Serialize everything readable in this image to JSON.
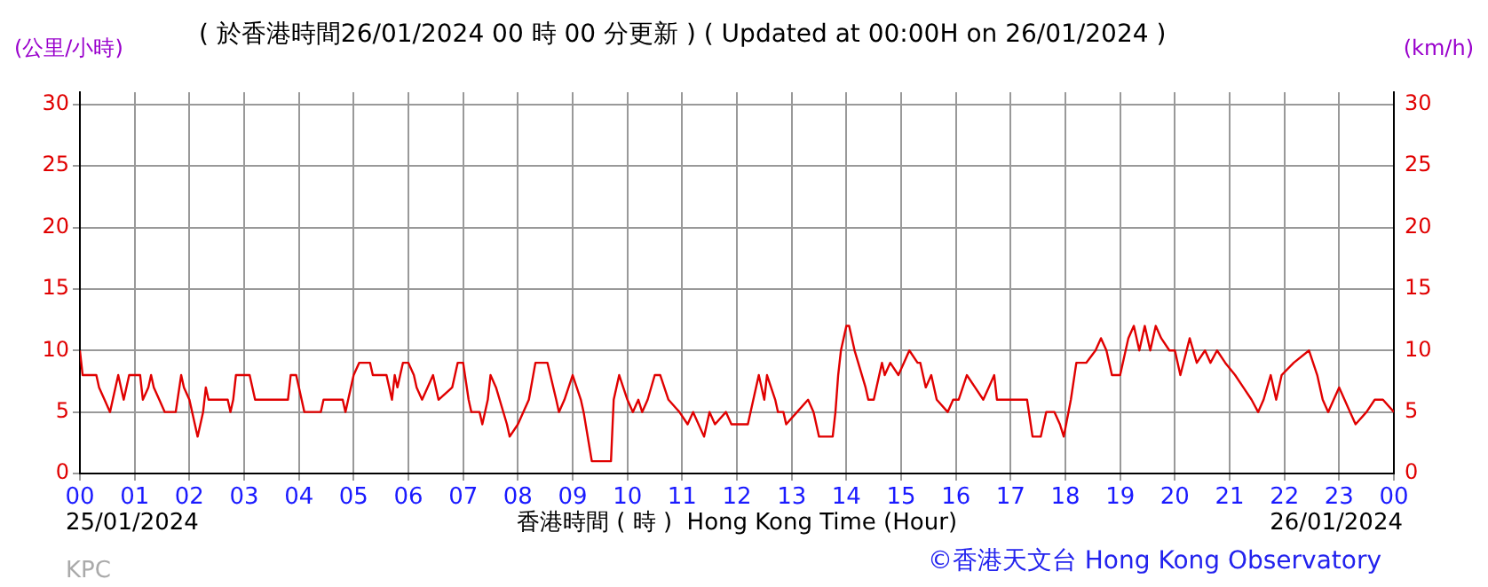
{
  "chart_data": {
    "type": "line",
    "title": "( 於香港時間26/01/2024 00 時 00 分更新 ) ( Updated at 00:00H on 26/01/2024 )",
    "xlabel": "香港時間 ( 時 )  Hong Kong Time (Hour)",
    "ylabel": "(公里/小時)",
    "y2label": "(km/h)",
    "annotations": [
      "25/01/2024",
      "26/01/2024",
      "KPC",
      "©香港天文台 Hong Kong Observatory"
    ],
    "xlim": [
      0,
      24
    ],
    "xticks": [
      {
        "value": 0,
        "label": "00"
      },
      {
        "value": 1,
        "label": "01"
      },
      {
        "value": 2,
        "label": "02"
      },
      {
        "value": 3,
        "label": "03"
      },
      {
        "value": 4,
        "label": "04"
      },
      {
        "value": 5,
        "label": "05"
      },
      {
        "value": 6,
        "label": "06"
      },
      {
        "value": 7,
        "label": "07"
      },
      {
        "value": 8,
        "label": "08"
      },
      {
        "value": 9,
        "label": "09"
      },
      {
        "value": 10,
        "label": "10"
      },
      {
        "value": 11,
        "label": "11"
      },
      {
        "value": 12,
        "label": "12"
      },
      {
        "value": 13,
        "label": "13"
      },
      {
        "value": 14,
        "label": "14"
      },
      {
        "value": 15,
        "label": "15"
      },
      {
        "value": 16,
        "label": "16"
      },
      {
        "value": 17,
        "label": "17"
      },
      {
        "value": 18,
        "label": "18"
      },
      {
        "value": 19,
        "label": "19"
      },
      {
        "value": 20,
        "label": "20"
      },
      {
        "value": 21,
        "label": "21"
      },
      {
        "value": 22,
        "label": "22"
      },
      {
        "value": 23,
        "label": "23"
      },
      {
        "value": 24,
        "label": "00"
      }
    ],
    "ylim": [
      0,
      31
    ],
    "yticks": [
      0,
      5,
      10,
      15,
      20,
      25,
      30
    ],
    "y2lim": [
      0,
      31
    ],
    "y2ticks": [
      0,
      5,
      10,
      15,
      20,
      25,
      30
    ],
    "grid": true,
    "legend": false,
    "marker": "none",
    "line_style": "solid",
    "series": [
      {
        "color": "#e00000",
        "x": [
          0,
          0.05,
          0.3,
          0.35,
          0.45,
          0.55,
          0.6,
          0.7,
          0.75,
          0.8,
          0.9,
          1.1,
          1.15,
          1.25,
          1.3,
          1.35,
          1.45,
          1.55,
          1.75,
          1.85,
          1.9,
          2.0,
          2.1,
          2.15,
          2.25,
          2.3,
          2.35,
          2.7,
          2.75,
          2.8,
          2.85,
          3.1,
          3.2,
          3.8,
          3.85,
          3.95,
          4.05,
          4.1,
          4.4,
          4.45,
          4.8,
          4.85,
          4.9,
          5.0,
          5.1,
          5.3,
          5.35,
          5.6,
          5.7,
          5.75,
          5.8,
          5.85,
          5.9,
          6.0,
          6.1,
          6.15,
          6.25,
          6.35,
          6.45,
          6.55,
          6.8,
          6.9,
          7.0,
          7.1,
          7.15,
          7.3,
          7.35,
          7.45,
          7.5,
          7.6,
          7.8,
          7.85,
          8.0,
          8.2,
          8.32,
          8.54,
          8.7,
          8.75,
          8.85,
          9.0,
          9.15,
          9.2,
          9.35,
          9.7,
          9.75,
          9.85,
          10.0,
          10.1,
          10.2,
          10.27,
          10.37,
          10.5,
          10.6,
          10.75,
          10.95,
          11.1,
          11.2,
          11.4,
          11.5,
          11.6,
          11.8,
          11.9,
          12.2,
          12.3,
          12.4,
          12.5,
          12.55,
          12.7,
          12.75,
          12.85,
          12.9,
          13.1,
          13.3,
          13.4,
          13.5,
          13.75,
          13.8,
          13.85,
          13.9,
          14.0,
          14.05,
          14.15,
          14.35,
          14.4,
          14.5,
          14.6,
          14.65,
          14.7,
          14.8,
          14.95,
          15.05,
          15.15,
          15.3,
          15.35,
          15.45,
          15.55,
          15.65,
          15.85,
          15.95,
          16.05,
          16.2,
          16.35,
          16.5,
          16.6,
          16.7,
          16.75,
          17.3,
          17.4,
          17.55,
          17.65,
          17.8,
          17.9,
          17.97,
          18.1,
          18.2,
          18.38,
          18.55,
          18.65,
          18.75,
          18.85,
          19.0,
          19.15,
          19.25,
          19.35,
          19.45,
          19.55,
          19.65,
          19.75,
          19.9,
          20.0,
          20.1,
          20.27,
          20.4,
          20.55,
          20.65,
          20.77,
          20.92,
          21.1,
          21.25,
          21.4,
          21.52,
          21.62,
          21.75,
          21.85,
          21.95,
          22.17,
          22.45,
          22.6,
          22.7,
          22.8,
          22.9,
          23.0,
          23.2,
          23.3,
          23.5,
          23.65,
          23.8,
          24
        ],
        "values": [
          10,
          8,
          8,
          7,
          6,
          5,
          6,
          8,
          7,
          6,
          8,
          8,
          6,
          7,
          8,
          7,
          6,
          5,
          5,
          8,
          7,
          6,
          4,
          3,
          5,
          7,
          6,
          6,
          5,
          6,
          8,
          8,
          6,
          6,
          8,
          8,
          6,
          5,
          5,
          6,
          6,
          5,
          6,
          8,
          9,
          9,
          8,
          8,
          6,
          8,
          7,
          8,
          9,
          9,
          8,
          7,
          6,
          7,
          8,
          6,
          7,
          9,
          9,
          6,
          5,
          5,
          4,
          6,
          8,
          7,
          4,
          3,
          4,
          6,
          9,
          9,
          6,
          5,
          6,
          8,
          6,
          5,
          1,
          1,
          6,
          8,
          6,
          5,
          6,
          5,
          6,
          8,
          8,
          6,
          5,
          4,
          5,
          3,
          5,
          4,
          5,
          4,
          4,
          6,
          8,
          6,
          8,
          6,
          5,
          5,
          4,
          5,
          6,
          5,
          3,
          3,
          5,
          8,
          10,
          12,
          12,
          10,
          7,
          6,
          6,
          8,
          9,
          8,
          9,
          8,
          9,
          10,
          9,
          9,
          7,
          8,
          6,
          5,
          6,
          6,
          8,
          7,
          6,
          7,
          8,
          6,
          6,
          3,
          3,
          5,
          5,
          4,
          3,
          6,
          9,
          9,
          10,
          11,
          10,
          8,
          8,
          11,
          12,
          10,
          12,
          10,
          12,
          11,
          10,
          10,
          8,
          11,
          9,
          10,
          9,
          10,
          9,
          8,
          7,
          6,
          5,
          6,
          8,
          6,
          8,
          9,
          10,
          8,
          6,
          5,
          6,
          7,
          5,
          4,
          5,
          6,
          6,
          5
        ]
      }
    ]
  }
}
